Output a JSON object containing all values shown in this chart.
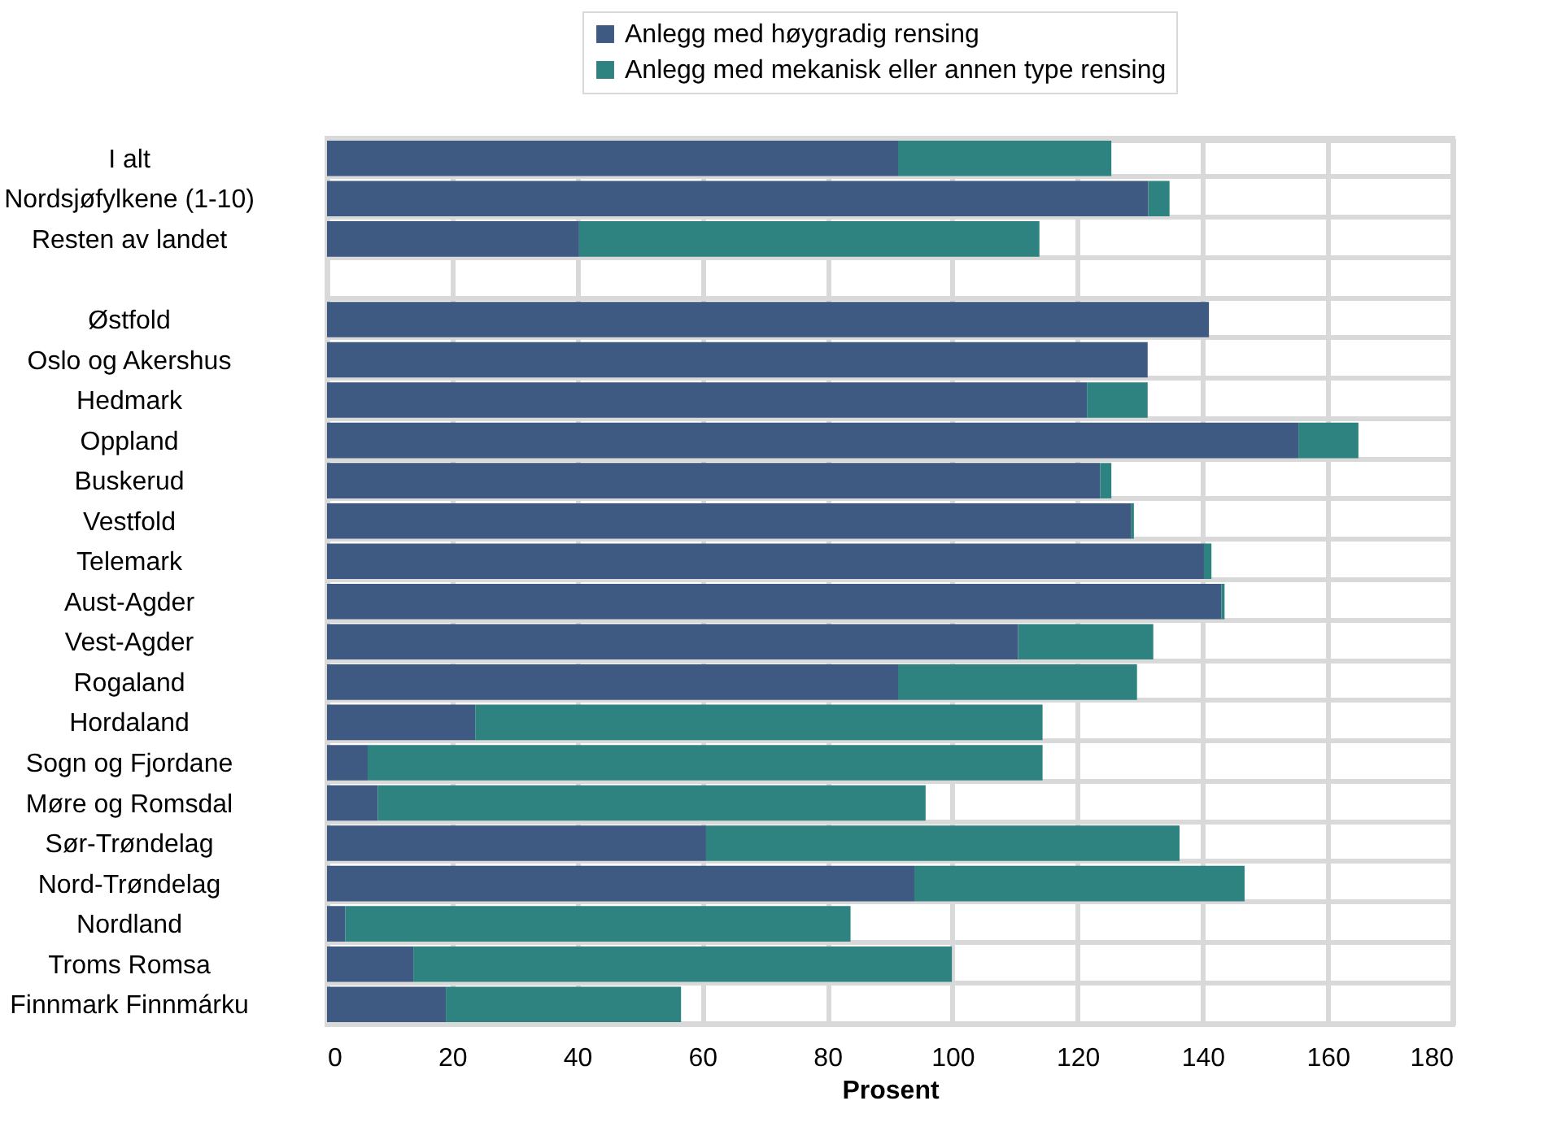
{
  "chart_data": {
    "type": "bar",
    "orientation": "horizontal",
    "stacked": true,
    "xlabel": "Prosent",
    "categories": [
      "I alt",
      "Nordsjøfylkene (1-10)",
      "Resten av landet",
      null,
      "Østfold",
      "Oslo og Akershus",
      "Hedmark",
      "Oppland",
      "Buskerud",
      "Vestfold",
      "Telemark",
      "Aust-Agder",
      "Vest-Agder",
      "Rogaland",
      "Hordaland",
      "Sogn og Fjordane",
      "Møre og Romsdal",
      "Sør-Trøndelag",
      "Nord-Trøndelag",
      "Nordland",
      "Troms Romsa",
      "Finnmark Finnmárku"
    ],
    "series": [
      {
        "name": "Anlegg med høygradig rensing",
        "color": "#3f5a82",
        "values": [
          91.3,
          131.3,
          40.3,
          null,
          141.0,
          131.2,
          121.5,
          155.3,
          123.6,
          128.6,
          140.2,
          143.0,
          110.5,
          91.3,
          23.7,
          6.5,
          8.1,
          60.6,
          93.9,
          2.9,
          13.8,
          19.0
        ]
      },
      {
        "name": "Anlegg med mekanisk eller annen type rensing",
        "color": "#2e8381",
        "values": [
          34.1,
          3.4,
          73.6,
          null,
          0,
          0,
          9.7,
          9.6,
          1.8,
          0.4,
          1.2,
          0.5,
          21.6,
          38.2,
          90.7,
          107.9,
          87.6,
          75.7,
          52.8,
          80.8,
          86.1,
          37.6
        ]
      }
    ],
    "xlim": [
      0,
      180
    ],
    "xticks": [
      0,
      20,
      40,
      60,
      80,
      100,
      120,
      140,
      160,
      180
    ],
    "grid": true,
    "legend": "top right"
  }
}
